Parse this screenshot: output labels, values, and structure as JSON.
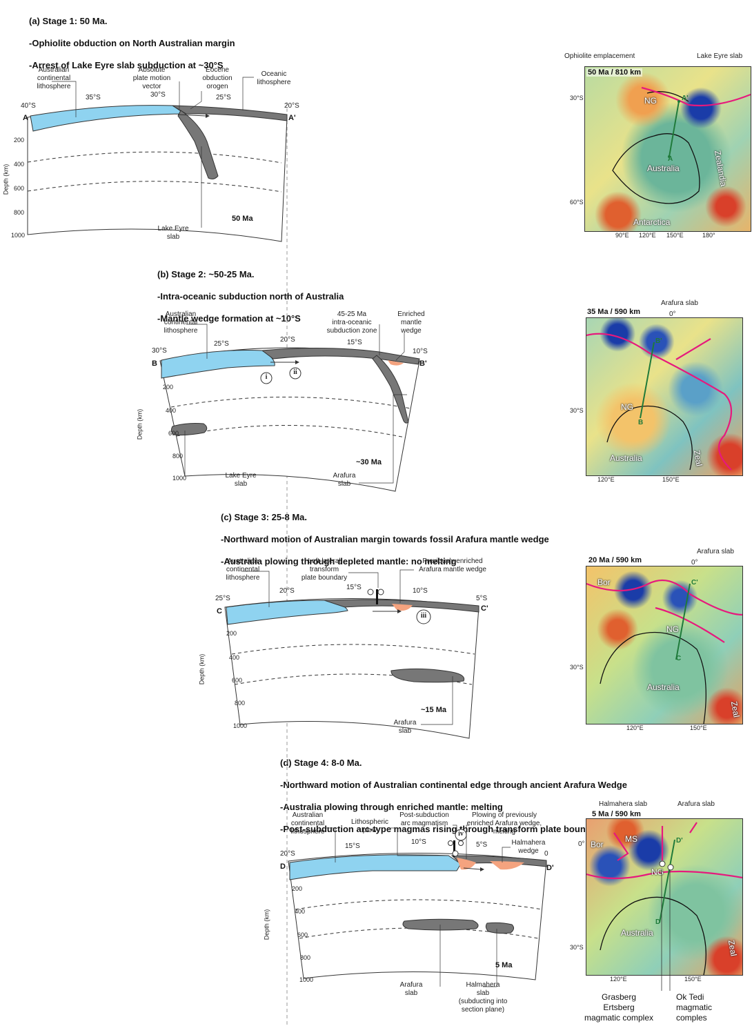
{
  "stages": [
    {
      "title": "(a) Stage 1: 50 Ma.",
      "lines": [
        "-Ophiolite obduction on North Australian margin",
        "-Arrest of Lake Eyre slab subduction at ~30°S"
      ],
      "section_start": "A",
      "section_end": "A'",
      "latitudes": [
        "40°S",
        "35°S",
        "30°S",
        "25°S",
        "20°S"
      ],
      "age": "50 Ma",
      "labels": {
        "continental": "Australian\ncontinental\nlithosphere",
        "motion": "Absolute\nplate motion\nvector",
        "orogen": "Eocene\nobduction\norogen",
        "oceanic": "Oceanic\nlithosphere",
        "slab": "Lake Eyre\nslab"
      }
    },
    {
      "title": "(b) Stage 2: ~50-25 Ma.",
      "lines": [
        "-Intra-oceanic subduction north of Australia",
        "-Mantle wedge formation at ~10°S"
      ],
      "section_start": "B",
      "section_end": "B'",
      "latitudes": [
        "30°S",
        "25°S",
        "20°S",
        "15°S",
        "10°S"
      ],
      "age": "~30 Ma",
      "markers": [
        "i",
        "ii"
      ],
      "labels": {
        "continental": "Australian\ncontinental\nlithosphere",
        "subduction": "45-25 Ma\nintra-oceanic\nsubduction zone",
        "wedge": "Enriched\nmantle\nwedge",
        "slab1": "Lake Eyre\nslab",
        "slab2": "Arafura\nslab"
      }
    },
    {
      "title": "(c) Stage 3: 25-8 Ma.",
      "lines": [
        "-Northward motion of Australian margin towards fossil Arafura mantle wedge",
        "-Australia plowing through depleted mantle: no melting"
      ],
      "section_start": "C",
      "section_end": "C'",
      "latitudes": [
        "25°S",
        "20°S",
        "15°S",
        "10°S",
        "5°S"
      ],
      "age": "~15 Ma",
      "markers": [
        "iii"
      ],
      "labels": {
        "continental": "Australian\ncontinental\nlithosphere",
        "transform": "Left-lateral\ntransform\nplate boundary",
        "wedge": "Previously enriched\nArafura mantle wedge",
        "slab": "Arafura\nslab"
      }
    },
    {
      "title": "(d) Stage 4: 8-0 Ma.",
      "lines": [
        "-Northward motion of Australian continental edge through ancient Arafura Wedge",
        "-Australia plowing through enriched mantle: melting",
        "-Post-subduction arc-type magmas rising through transform plate boundary"
      ],
      "section_start": "D",
      "section_end": "D'",
      "latitudes": [
        "20°S",
        "15°S",
        "10°S",
        "5°S",
        "0"
      ],
      "age": "5 Ma",
      "markers": [
        "iv"
      ],
      "labels": {
        "continental": "Australian\ncontinental\nlithosphere",
        "plow": "Lithospheric\nplow",
        "arc": "Post-subduction\narc magmatism",
        "plowing": "Plowing of previously\nenriched Arafura wedge,\nmelting",
        "halwedge": "Halmahera\nwedge",
        "slab1": "Arafura\nslab",
        "slab2": "Halmahera\nslab\n(subducting into\nsection plane)"
      }
    }
  ],
  "depth_ticks": [
    "200",
    "400",
    "600",
    "800",
    "1000"
  ],
  "depth_axis": "Depth (km)",
  "maps": [
    {
      "title": "50 Ma / 810 km",
      "notes": [
        "Ophiolite emplacement",
        "Lake Eyre slab"
      ],
      "places": [
        "NG",
        "Australia",
        "Zealandia",
        "Antarctica"
      ],
      "lat_ticks": [
        "30°S",
        "60°S"
      ],
      "lon_ticks": [
        "90°E",
        "120°E",
        "150°E",
        "180°"
      ],
      "points": [
        "A",
        "A'"
      ]
    },
    {
      "title": "35 Ma / 590 km",
      "notes": [
        "Arafura slab",
        "0°"
      ],
      "places": [
        "NG",
        "Australia",
        "Zeal"
      ],
      "lat_ticks": [
        "30°S"
      ],
      "lon_ticks": [
        "120°E",
        "150°E"
      ],
      "points": [
        "B",
        "B'"
      ]
    },
    {
      "title": "20 Ma / 590 km",
      "notes": [
        "Arafura slab",
        "0°"
      ],
      "places": [
        "Bor",
        "NG",
        "Australia",
        "Zeal"
      ],
      "lat_ticks": [
        "30°S"
      ],
      "lon_ticks": [
        "120°E",
        "150°E"
      ],
      "points": [
        "C",
        "C'"
      ]
    },
    {
      "title": "5 Ma / 590 km",
      "notes": [
        "Halmahera slab",
        "Arafura slab",
        "0°"
      ],
      "places": [
        "Bor",
        "MS",
        "NG",
        "Australia",
        "Zeal"
      ],
      "lat_ticks": [
        "30°S"
      ],
      "lon_ticks": [
        "120°E",
        "150°E"
      ],
      "points": [
        "D",
        "D'"
      ]
    }
  ],
  "bottom": {
    "grasberg": "Grasberg\nErtsberg\nmagmatic complex",
    "oktedi": "Ok Tedi\nmagmatic\ncomples"
  },
  "colors": {
    "continental": "#8fd3f0",
    "oceanic": "#777777",
    "wedge": "#f4a37f",
    "plate_boundary": "#e6197d",
    "section_line": "#1f7a3a"
  }
}
